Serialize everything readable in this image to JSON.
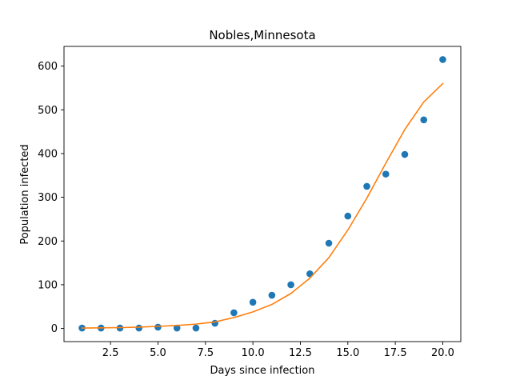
{
  "chart_data": {
    "type": "scatter",
    "title": "Nobles,Minnesota",
    "xlabel": "Days since infection",
    "ylabel": "Population infected",
    "xlim": [
      0.05,
      20.95
    ],
    "ylim": [
      -30,
      645
    ],
    "xticks": [
      2.5,
      5.0,
      7.5,
      10.0,
      12.5,
      15.0,
      17.5,
      20.0
    ],
    "xtick_labels": [
      "2.5",
      "5.0",
      "7.5",
      "10.0",
      "12.5",
      "15.0",
      "17.5",
      "20.0"
    ],
    "yticks": [
      0,
      100,
      200,
      300,
      400,
      500,
      600
    ],
    "ytick_labels": [
      "0",
      "100",
      "200",
      "300",
      "400",
      "500",
      "600"
    ],
    "grid": false,
    "series": [
      {
        "kind": "scatter",
        "color": "#1f77b4",
        "x": [
          1,
          2,
          3,
          4,
          5,
          6,
          7,
          8,
          9,
          10,
          11,
          12,
          13,
          14,
          15,
          16,
          17,
          18,
          19,
          20
        ],
        "y": [
          1,
          1,
          1,
          1,
          3,
          1,
          1,
          12,
          36,
          60,
          76,
          100,
          125,
          195,
          257,
          325,
          353,
          398,
          477,
          615
        ]
      },
      {
        "kind": "line",
        "color": "#ff7f0e",
        "x": [
          1,
          2,
          3,
          4,
          5,
          6,
          7,
          8,
          9,
          10,
          11,
          12,
          13,
          14,
          15,
          16,
          17,
          18,
          19,
          20
        ],
        "y": [
          1,
          1.5,
          2,
          3,
          5,
          7,
          10,
          15,
          25,
          38,
          55,
          80,
          115,
          162,
          225,
          298,
          378,
          455,
          518,
          560
        ]
      }
    ]
  }
}
